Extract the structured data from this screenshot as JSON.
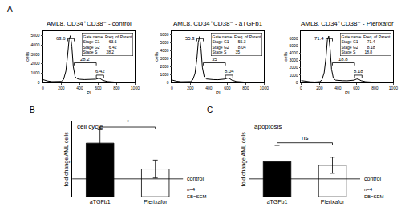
{
  "chart_data": [
    {
      "type": "line",
      "panel": "A",
      "title": "AML8, CD34⁺CD38⁻ - control",
      "x_label": "PI",
      "y_label": "cells",
      "x": [
        0,
        50,
        100,
        150,
        200,
        225,
        250,
        270,
        285,
        300,
        315,
        330,
        350,
        375,
        400,
        450,
        500,
        550,
        575,
        600,
        615,
        630,
        650,
        700,
        750,
        800,
        900,
        1000
      ],
      "values": [
        300,
        150,
        80,
        60,
        100,
        300,
        1200,
        3000,
        4600,
        5000,
        3800,
        1700,
        600,
        380,
        330,
        300,
        290,
        300,
        340,
        420,
        430,
        350,
        220,
        90,
        40,
        20,
        10,
        5
      ],
      "color": "#000000",
      "xlim": [
        0,
        1000
      ],
      "xticks": [
        0,
        200,
        400,
        600,
        800,
        1000
      ],
      "ylim": [
        0,
        5500
      ],
      "yticks": [
        0,
        1000,
        2000,
        3000,
        4000,
        5000
      ],
      "gates": [
        {
          "name": "Stage G1",
          "value": 63.6,
          "from": 270,
          "to": 340
        },
        {
          "name": "Stage S",
          "value": 28.2,
          "from": 340,
          "to": 580
        },
        {
          "name": "Stage G2",
          "value": 6.42,
          "from": 580,
          "to": 660
        }
      ],
      "gate_table": {
        "header": [
          "Gate name",
          "Freq. of Parent"
        ],
        "rows": [
          [
            "Stage G1",
            "63.6"
          ],
          [
            "Stage G2",
            "6.42"
          ],
          [
            "Stage S",
            "28.2"
          ]
        ]
      }
    },
    {
      "type": "line",
      "title": "AML8, CD34⁺CD38⁻ - aTGFb1",
      "x_label": "PI",
      "y_label": "cells",
      "x": [
        0,
        50,
        100,
        150,
        200,
        225,
        250,
        270,
        285,
        300,
        315,
        330,
        350,
        375,
        400,
        450,
        500,
        550,
        575,
        600,
        615,
        630,
        650,
        700,
        750,
        800,
        900,
        1000
      ],
      "values": [
        300,
        150,
        80,
        60,
        100,
        300,
        1100,
        2900,
        5000,
        5800,
        4300,
        1900,
        700,
        430,
        380,
        350,
        340,
        360,
        420,
        520,
        540,
        440,
        280,
        110,
        50,
        25,
        10,
        5
      ],
      "color": "#000000",
      "xlim": [
        0,
        1000
      ],
      "xticks": [
        0,
        200,
        400,
        600,
        800,
        1000
      ],
      "ylim": [
        0,
        6500
      ],
      "yticks": [
        0,
        1000,
        2000,
        3000,
        4000,
        5000,
        6000
      ],
      "gates": [
        {
          "name": "Stage G1",
          "value": 55.3,
          "from": 270,
          "to": 340
        },
        {
          "name": "Stage S",
          "value": 35,
          "from": 340,
          "to": 580
        },
        {
          "name": "Stage G2",
          "value": 8.04,
          "from": 580,
          "to": 660
        }
      ],
      "gate_table": {
        "header": [
          "Gate name",
          "Freq. of Parent"
        ],
        "rows": [
          [
            "Stage G1",
            "55.3"
          ],
          [
            "Stage G2",
            "8.04"
          ],
          [
            "Stage S",
            "35"
          ]
        ]
      }
    },
    {
      "type": "line",
      "title": "AML8, CD34⁺CD38⁻ - Plerixafor",
      "x_label": "PI",
      "y_label": "cells",
      "x": [
        0,
        50,
        100,
        150,
        200,
        225,
        250,
        270,
        285,
        300,
        315,
        330,
        350,
        375,
        400,
        450,
        500,
        550,
        575,
        600,
        615,
        630,
        650,
        700,
        750,
        800,
        900,
        1000
      ],
      "values": [
        250,
        130,
        70,
        50,
        90,
        300,
        1300,
        3400,
        5800,
        6300,
        4500,
        1800,
        550,
        300,
        250,
        230,
        220,
        240,
        300,
        440,
        460,
        370,
        230,
        90,
        40,
        20,
        10,
        5
      ],
      "color": "#000000",
      "xlim": [
        0,
        1000
      ],
      "xticks": [
        0,
        200,
        400,
        600,
        800,
        1000
      ],
      "ylim": [
        0,
        7000
      ],
      "yticks": [
        0,
        1000,
        2000,
        3000,
        4000,
        5000,
        6000
      ],
      "gates": [
        {
          "name": "Stage G1",
          "value": 71.4,
          "from": 270,
          "to": 340
        },
        {
          "name": "Stage S",
          "value": 18.8,
          "from": 340,
          "to": 580
        },
        {
          "name": "Stage G2",
          "value": 8.18,
          "from": 580,
          "to": 660
        }
      ],
      "gate_table": {
        "header": [
          "Gate name",
          "Freq. of Parent"
        ],
        "rows": [
          [
            "Stage G1",
            "71.4"
          ],
          [
            "Stage G2",
            "8.18"
          ],
          [
            "Stage S",
            "18.8"
          ]
        ]
      }
    },
    {
      "type": "bar",
      "panel": "B",
      "title": "cell cycle",
      "y_label": "fold change AML cells",
      "categories": [
        "aTGFb1",
        "Plerixafor"
      ],
      "values": [
        3.0,
        1.55
      ],
      "errors": [
        0.75,
        0.5
      ],
      "colors": [
        "#000000",
        "#ffffff"
      ],
      "ylim": [
        0,
        4.2
      ],
      "tick_labels": "x",
      "reference": {
        "text": "control",
        "y": 1
      },
      "notes": [
        "n=4",
        "EB=SEM"
      ],
      "significance": "*"
    },
    {
      "type": "bar",
      "panel": "C",
      "title": "apoptosis",
      "y_label": "fold change AML cells",
      "categories": [
        "aTGFb1",
        "Plerixafor"
      ],
      "values": [
        1.97,
        1.76
      ],
      "errors": [
        0.9,
        0.45
      ],
      "colors": [
        "#000000",
        "#ffffff"
      ],
      "ylim": [
        0,
        4.2
      ],
      "tick_labels": "x",
      "reference": {
        "text": "control",
        "y": 1
      },
      "notes": [
        "n=4",
        "EB=SEM"
      ],
      "significance": "ns"
    }
  ]
}
